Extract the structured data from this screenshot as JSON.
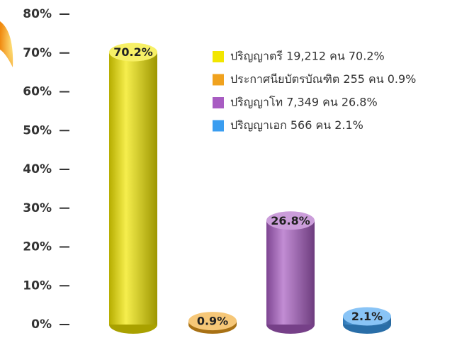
{
  "chart_data": {
    "type": "bar",
    "categories": [
      "ปริญญาตรี 19,212 คน 70.2%",
      "ประกาศนียบัตรบัณฑิต 255 คน 0.9%",
      "ปริญญาโท 7,349 คน 26.8%",
      "ปริญญาเอก 566 คน 2.1%"
    ],
    "values": [
      70.2,
      0.9,
      26.8,
      2.1
    ],
    "value_labels": [
      "70.2%",
      "0.9%",
      "26.8%",
      "2.1%"
    ],
    "colors": [
      "#f2e600",
      "#f0a21e",
      "#a85cc2",
      "#3a9df0"
    ],
    "ylim": [
      0,
      80
    ],
    "yticks": [
      {
        "value": 0,
        "label": "0%"
      },
      {
        "value": 10,
        "label": "10%"
      },
      {
        "value": 20,
        "label": "20%"
      },
      {
        "value": 30,
        "label": "30%"
      },
      {
        "value": 40,
        "label": "40%"
      },
      {
        "value": 50,
        "label": "50%"
      },
      {
        "value": 60,
        "label": "60%"
      },
      {
        "value": 70,
        "label": "70%"
      },
      {
        "value": 80,
        "label": "80%"
      }
    ],
    "legend": "upper right"
  }
}
